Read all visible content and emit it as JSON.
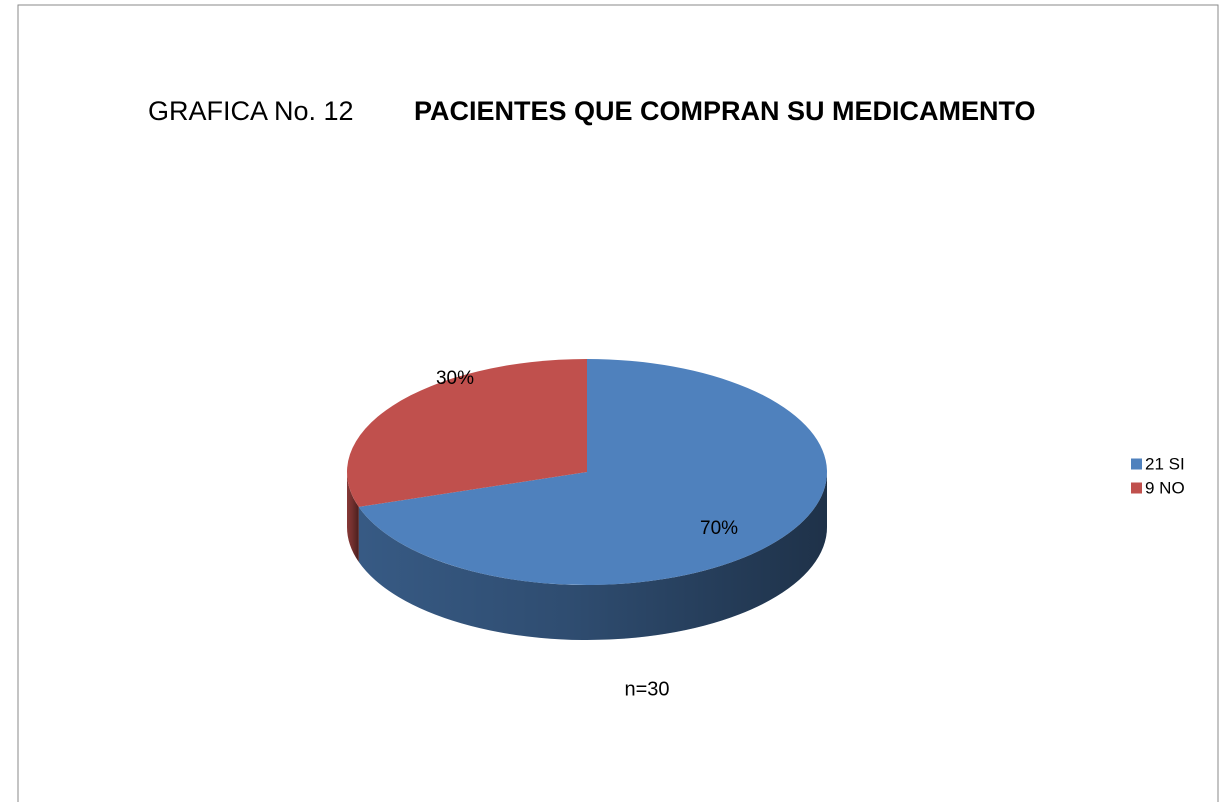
{
  "chart_data": {
    "type": "pie3d",
    "chart_number": "GRAFICA No. 12",
    "title": "PACIENTES QUE COMPRAN SU MEDICAMENTO",
    "categories": [
      "21 SI",
      "9 NO"
    ],
    "values": [
      70,
      30
    ],
    "value_labels": [
      "70%",
      "30%"
    ],
    "colors": [
      "#4f81bd",
      "#c0504d"
    ],
    "legend": "right",
    "annotation": "n=30"
  }
}
